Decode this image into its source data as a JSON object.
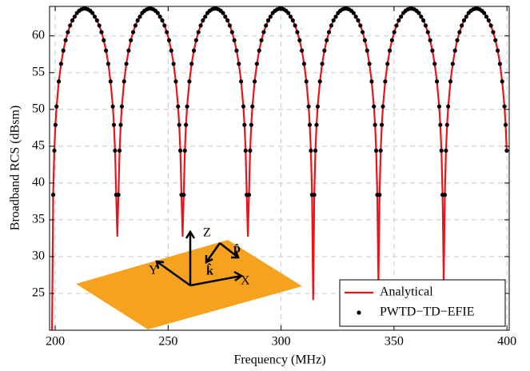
{
  "chart_data": {
    "type": "line",
    "xlabel": "Frequency (MHz)",
    "ylabel": "Broadband RCS (dBsm)",
    "xlim": [
      197.5,
      401
    ],
    "ylim": [
      20,
      64
    ],
    "xticks": [
      200,
      250,
      300,
      350,
      400
    ],
    "yticks": [
      25,
      30,
      35,
      40,
      45,
      50,
      55,
      60
    ],
    "grid": true,
    "legend": "lower right",
    "inset_labels": [
      "Z",
      "Y",
      "X",
      "k̂",
      "p̂"
    ],
    "x": [
      198.6,
      199.1,
      199.6,
      200.1,
      200.6,
      201.6,
      202.6,
      203.6,
      204.6,
      205.6,
      206.6,
      207.6,
      208.6,
      209.6,
      210.6,
      211.6,
      212.6,
      213.5,
      214.5,
      215.5,
      216.5,
      217.5,
      218.5,
      219.5,
      220.5,
      221.5,
      222.5,
      223.5,
      224.5,
      225.5,
      226.0,
      226.5,
      227.0,
      227.5,
      228.0,
      228.5,
      229.0,
      229.5,
      230.5,
      231.5,
      232.5,
      233.5,
      234.5,
      235.5,
      236.5,
      237.5,
      238.5,
      239.5,
      240.5,
      241.5,
      242.4,
      243.4,
      244.4,
      245.4,
      246.4,
      247.4,
      248.4,
      249.4,
      250.4,
      251.4,
      252.4,
      253.4,
      254.4,
      254.9,
      255.4,
      255.9,
      256.4,
      256.9,
      257.4,
      257.9,
      258.4,
      259.4,
      260.4,
      261.4,
      262.4,
      263.4,
      264.4,
      265.4,
      266.4,
      267.4,
      268.4,
      269.4,
      270.4,
      271.3,
      272.3,
      273.3,
      274.3,
      275.3,
      276.3,
      277.3,
      278.3,
      279.3,
      280.3,
      281.3,
      282.3,
      283.3,
      283.8,
      284.3,
      284.8,
      285.3,
      285.8,
      286.3,
      286.8,
      287.3,
      288.3,
      289.3,
      290.3,
      291.3,
      292.3,
      293.3,
      294.3,
      295.3,
      296.3,
      297.3,
      298.3,
      299.3,
      300.2,
      301.2,
      302.2,
      303.2,
      304.2,
      305.2,
      306.2,
      307.2,
      308.2,
      309.2,
      310.2,
      311.2,
      312.2,
      312.7,
      313.2,
      313.7,
      314.2,
      314.7,
      315.2,
      315.7,
      316.2,
      317.2,
      318.2,
      319.2,
      320.2,
      321.2,
      322.2,
      323.2,
      324.2,
      325.2,
      326.2,
      327.2,
      328.2,
      329.1,
      330.1,
      331.1,
      332.1,
      333.1,
      334.1,
      335.1,
      336.1,
      337.1,
      338.1,
      339.1,
      340.1,
      341.1,
      341.6,
      342.1,
      342.6,
      343.1,
      343.6,
      344.1,
      344.6,
      345.1,
      346.1,
      347.1,
      348.1,
      349.1,
      350.1,
      351.1,
      352.1,
      353.1,
      354.1,
      355.1,
      356.1,
      357.1,
      358.0,
      359.0,
      360.0,
      361.0,
      362.0,
      363.0,
      364.0,
      365.0,
      366.0,
      367.0,
      368.0,
      369.0,
      370.0,
      370.5,
      371.0,
      371.5,
      372.0,
      372.5,
      373.0,
      373.5,
      374.0,
      375.0,
      376.0,
      377.0,
      378.0,
      379.0,
      380.0,
      381.0,
      382.0,
      383.0,
      384.0,
      385.0,
      386.0,
      386.9,
      387.9,
      388.9,
      389.9,
      390.9,
      391.9,
      392.9,
      393.9,
      394.9,
      395.9,
      396.9,
      397.9,
      398.9,
      399.4,
      399.9
    ],
    "series": [
      {
        "name": "Analytical",
        "color": "#e8141b",
        "mode": "line",
        "values": [
          20,
          38.4,
          44.4,
          47.9,
          50.4,
          53.8,
          56.2,
          58.0,
          59.4,
          60.5,
          61.4,
          62.1,
          62.6,
          63.1,
          63.4,
          63.6,
          63.7,
          63.7,
          63.6,
          63.4,
          63.1,
          62.6,
          62.1,
          61.4,
          60.5,
          59.4,
          58.0,
          56.2,
          53.8,
          50.4,
          47.9,
          44.4,
          38.4,
          32.8,
          38.4,
          44.4,
          47.9,
          50.4,
          53.8,
          56.2,
          58.0,
          59.4,
          60.5,
          61.4,
          62.1,
          62.6,
          63.1,
          63.4,
          63.6,
          63.7,
          63.7,
          63.6,
          63.4,
          63.1,
          62.6,
          62.1,
          61.4,
          60.5,
          59.4,
          58.0,
          56.2,
          53.8,
          50.4,
          47.9,
          44.4,
          38.4,
          32.8,
          38.4,
          44.4,
          47.9,
          50.4,
          53.8,
          56.2,
          58.0,
          59.4,
          60.5,
          61.4,
          62.1,
          62.6,
          63.1,
          63.4,
          63.6,
          63.7,
          63.7,
          63.6,
          63.4,
          63.1,
          62.6,
          62.1,
          61.4,
          60.5,
          59.4,
          58.0,
          56.2,
          53.8,
          50.4,
          47.9,
          44.4,
          38.4,
          32.8,
          38.4,
          44.4,
          47.9,
          50.4,
          53.8,
          56.2,
          58.0,
          59.4,
          60.5,
          61.4,
          62.1,
          62.6,
          63.1,
          63.4,
          63.6,
          63.7,
          63.7,
          63.6,
          63.4,
          63.1,
          62.6,
          62.1,
          61.4,
          60.5,
          59.4,
          58.0,
          56.2,
          53.8,
          50.4,
          47.9,
          44.4,
          38.4,
          24.2,
          38.4,
          44.4,
          47.9,
          50.4,
          53.8,
          56.2,
          58.0,
          59.4,
          60.5,
          61.4,
          62.1,
          62.6,
          63.1,
          63.4,
          63.6,
          63.7,
          63.7,
          63.6,
          63.4,
          63.1,
          62.6,
          62.1,
          61.4,
          60.5,
          59.4,
          58.0,
          56.2,
          53.8,
          50.4,
          47.9,
          44.4,
          38.4,
          26.5,
          38.4,
          44.4,
          47.9,
          50.4,
          53.8,
          56.2,
          58.0,
          59.4,
          60.5,
          61.4,
          62.1,
          62.6,
          63.1,
          63.4,
          63.6,
          63.7,
          63.7,
          63.6,
          63.4,
          63.1,
          62.6,
          62.1,
          61.4,
          60.5,
          59.4,
          58.0,
          56.2,
          53.8,
          50.4,
          47.9,
          44.4,
          38.4,
          26.5,
          38.4,
          44.4,
          47.9,
          50.4,
          53.8,
          56.2,
          58.0,
          59.4,
          60.5,
          61.4,
          62.1,
          62.6,
          63.1,
          63.4,
          63.6,
          63.7,
          63.7,
          63.6,
          63.4,
          63.1,
          62.6,
          62.1,
          61.4,
          60.5,
          59.4,
          58.0,
          56.2,
          53.8,
          50.4,
          47.9,
          44.4
        ]
      },
      {
        "name": "PWTD−TD−EFIE",
        "color": "#000000",
        "mode": "markers",
        "values": [
          null,
          38.4,
          44.4,
          47.9,
          50.4,
          53.8,
          56.2,
          58.0,
          59.4,
          60.5,
          61.4,
          62.1,
          62.6,
          63.1,
          63.4,
          63.6,
          63.7,
          63.7,
          63.6,
          63.4,
          63.1,
          62.6,
          62.1,
          61.4,
          60.5,
          59.4,
          58.0,
          56.2,
          53.8,
          50.4,
          47.9,
          44.4,
          38.4,
          null,
          38.4,
          44.4,
          47.9,
          50.4,
          53.8,
          56.2,
          58.0,
          59.4,
          60.5,
          61.4,
          62.1,
          62.6,
          63.1,
          63.4,
          63.6,
          63.7,
          63.7,
          63.6,
          63.4,
          63.1,
          62.6,
          62.1,
          61.4,
          60.5,
          59.4,
          58.0,
          56.2,
          53.8,
          50.4,
          47.9,
          44.4,
          38.4,
          null,
          38.4,
          44.4,
          47.9,
          50.4,
          53.8,
          56.2,
          58.0,
          59.4,
          60.5,
          61.4,
          62.1,
          62.6,
          63.1,
          63.4,
          63.6,
          63.7,
          63.7,
          63.6,
          63.4,
          63.1,
          62.6,
          62.1,
          61.4,
          60.5,
          59.4,
          58.0,
          56.2,
          53.8,
          50.4,
          47.9,
          44.4,
          38.4,
          null,
          38.4,
          44.4,
          47.9,
          50.4,
          53.8,
          56.2,
          58.0,
          59.4,
          60.5,
          61.4,
          62.1,
          62.6,
          63.1,
          63.4,
          63.6,
          63.7,
          63.7,
          63.6,
          63.4,
          63.1,
          62.6,
          62.1,
          61.4,
          60.5,
          59.4,
          58.0,
          56.2,
          53.8,
          50.4,
          47.9,
          44.4,
          38.4,
          null,
          38.4,
          44.4,
          47.9,
          50.4,
          53.8,
          56.2,
          58.0,
          59.4,
          60.5,
          61.4,
          62.1,
          62.6,
          63.1,
          63.4,
          63.6,
          63.7,
          63.7,
          63.6,
          63.4,
          63.1,
          62.6,
          62.1,
          61.4,
          60.5,
          59.4,
          58.0,
          56.2,
          53.8,
          50.4,
          47.9,
          44.4,
          38.4,
          null,
          38.4,
          44.4,
          47.9,
          50.4,
          53.8,
          56.2,
          58.0,
          59.4,
          60.5,
          61.4,
          62.1,
          62.6,
          63.1,
          63.4,
          63.6,
          63.7,
          63.7,
          63.6,
          63.4,
          63.1,
          62.6,
          62.1,
          61.4,
          60.5,
          59.4,
          58.0,
          56.2,
          53.8,
          50.4,
          47.9,
          44.4,
          38.4,
          null,
          38.4,
          44.4,
          47.9,
          50.4,
          53.8,
          56.2,
          58.0,
          59.4,
          60.5,
          61.4,
          62.1,
          62.6,
          63.1,
          63.4,
          63.6,
          63.7,
          63.7,
          63.6,
          63.4,
          63.1,
          62.6,
          62.1,
          61.4,
          60.5,
          59.4,
          58.0,
          56.2,
          53.8,
          50.4,
          47.9,
          44.4
        ]
      }
    ]
  }
}
